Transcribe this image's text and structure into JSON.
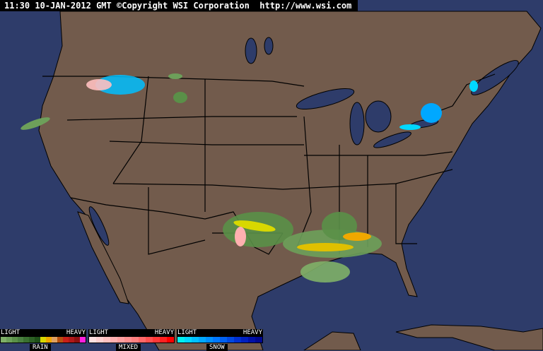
{
  "header": {
    "time": "11:30",
    "date": "10-JAN-2012",
    "zone": "GMT",
    "copyright": "©Copyright WSI Corporation",
    "url": "http://www.wsi.com"
  },
  "colors": {
    "land": "#725b4c",
    "water": "#2e3c6a",
    "borders": "#000000"
  },
  "legend": [
    {
      "name": "RAIN",
      "light": "LIGHT",
      "heavy": "HEAVY",
      "colors": [
        "#7fb068",
        "#6da05a",
        "#5a9048",
        "#4a8040",
        "#3a7030",
        "#2d6025",
        "#1f5018",
        "#d8d800",
        "#f0a800",
        "#e0a060",
        "#b85010",
        "#c82018",
        "#b01818",
        "#901010",
        "#ff20e0"
      ]
    },
    {
      "name": "MIXED",
      "light": "LIGHT",
      "heavy": "HEAVY",
      "colors": [
        "#ffe0e0",
        "#ffd0d0",
        "#ffc0c0",
        "#ffb0b0",
        "#ffa0a0",
        "#ff9090",
        "#ff8080",
        "#ff6868",
        "#ff5050",
        "#ff3838",
        "#ff2020",
        "#ff0000"
      ]
    },
    {
      "name": "SNOW",
      "light": "LIGHT",
      "heavy": "HEAVY",
      "colors": [
        "#00f0f0",
        "#00d8ff",
        "#00c0ff",
        "#00a8ff",
        "#0090ff",
        "#0078ff",
        "#0060f0",
        "#0048e0",
        "#0030d0",
        "#0020c0",
        "#0010a8",
        "#000890"
      ]
    }
  ]
}
